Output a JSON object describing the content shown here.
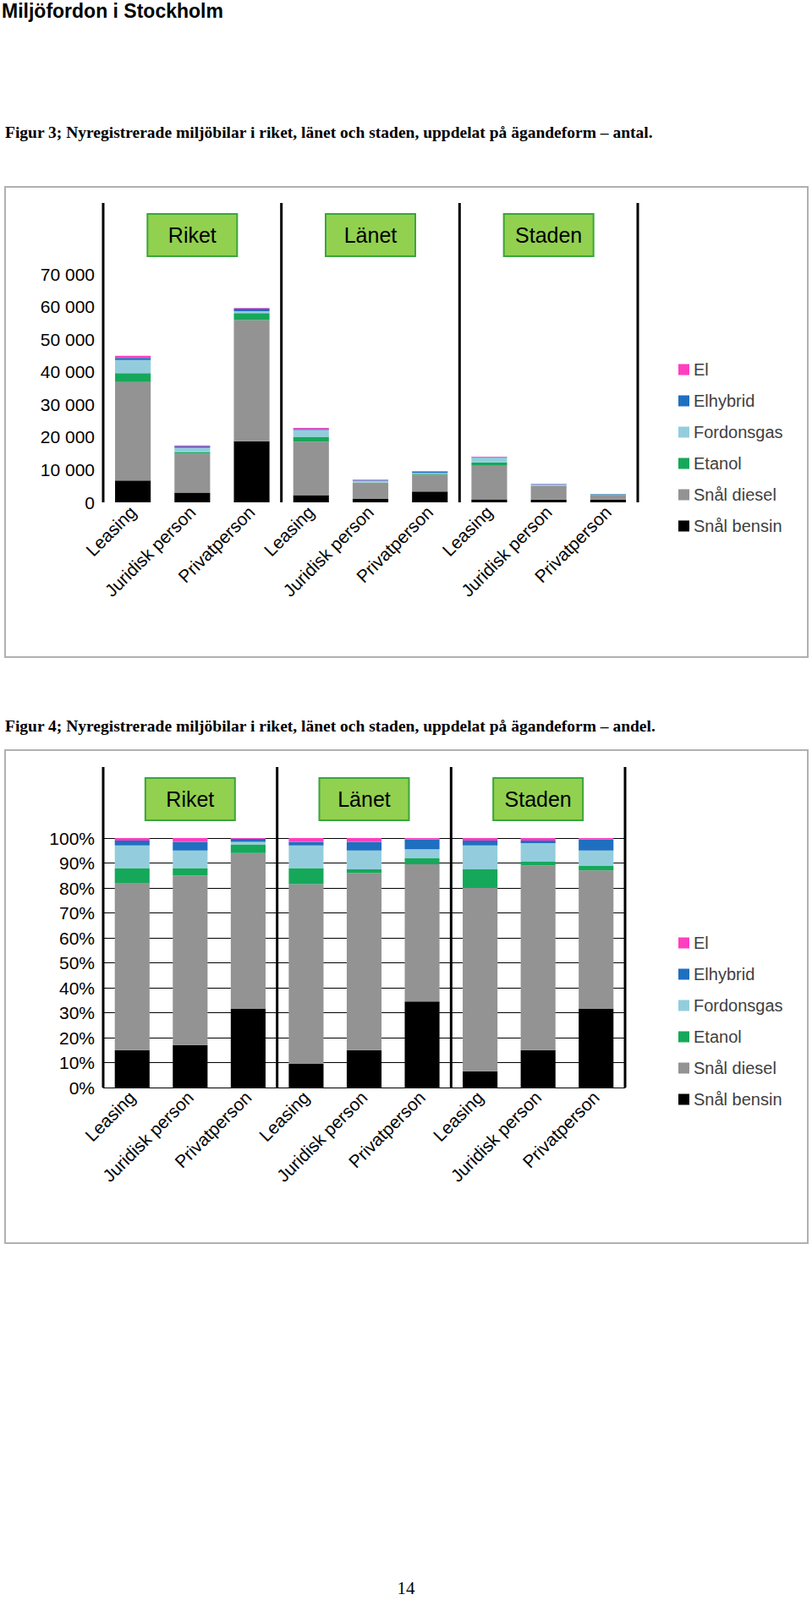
{
  "header": "Miljöfordon i Stockholm",
  "page_number": "14",
  "chart_data": [
    {
      "type": "bar",
      "title": "Figur 3; Nyregistrerade miljöbilar i riket, länet och staden, uppdelat på ägandeform – antal.",
      "groups": [
        "Riket",
        "Länet",
        "Staden"
      ],
      "categories": [
        "Leasing",
        "Juridisk person",
        "Privatperson",
        "Leasing",
        "Juridisk person",
        "Privatperson",
        "Leasing",
        "Juridisk person",
        "Privatperson"
      ],
      "series": [
        {
          "name": "Snål bensin",
          "color": "#000000",
          "values": [
            6700,
            3000,
            18700,
            2200,
            1050,
            3300,
            900,
            850,
            820
          ]
        },
        {
          "name": "Snål diesel",
          "color": "#939393",
          "values": [
            30200,
            11900,
            37200,
            16400,
            4950,
            5200,
            10300,
            4200,
            1440
          ]
        },
        {
          "name": "Etanol",
          "color": "#16a85a",
          "values": [
            2700,
            550,
            2100,
            1500,
            100,
            240,
            1050,
            90,
            50
          ]
        },
        {
          "name": "Fordonsgas",
          "color": "#93cddd",
          "values": [
            4000,
            1250,
            600,
            2050,
            530,
            330,
            1400,
            400,
            160
          ]
        },
        {
          "name": "Elhybrid",
          "color": "#1f6fc0",
          "values": [
            700,
            500,
            800,
            350,
            250,
            380,
            200,
            90,
            120
          ]
        },
        {
          "name": "El",
          "color": "#ff3fbf",
          "values": [
            600,
            250,
            150,
            300,
            100,
            50,
            150,
            60,
            15
          ]
        }
      ],
      "ylim": [
        0,
        70000
      ],
      "yticks": [
        0,
        {
          "value": 10000,
          "label": "10 000"
        },
        {
          "value": 20000,
          "label": "20 000"
        },
        {
          "value": 30000,
          "label": "30 000"
        },
        {
          "value": 40000,
          "label": "40 000"
        },
        {
          "value": 50000,
          "label": "50 000"
        },
        {
          "value": 60000,
          "label": "60 000"
        },
        {
          "value": 70000,
          "label": "70 000"
        }
      ],
      "stacked": true,
      "grid": false,
      "legend": "right"
    },
    {
      "type": "bar",
      "title": "Figur 4; Nyregistrerade miljöbilar i riket, länet och staden, uppdelat på ägandeform – andel.",
      "groups": [
        "Riket",
        "Länet",
        "Staden"
      ],
      "categories": [
        "Leasing",
        "Juridisk person",
        "Privatperson",
        "Leasing",
        "Juridisk person",
        "Privatperson",
        "Leasing",
        "Juridisk person",
        "Privatperson"
      ],
      "series": [
        {
          "name": "Snål bensin",
          "color": "#000000",
          "values": [
            15,
            17,
            31.5,
            9.5,
            15,
            34.5,
            6.5,
            15,
            31.5
          ]
        },
        {
          "name": "Snål diesel",
          "color": "#939393",
          "values": [
            67,
            68,
            62.5,
            72,
            71,
            55,
            73.5,
            74,
            55.5
          ]
        },
        {
          "name": "Etanol",
          "color": "#16a85a",
          "values": [
            6,
            3,
            3.5,
            6.5,
            1.5,
            2.5,
            7.5,
            1.5,
            2
          ]
        },
        {
          "name": "Fordonsgas",
          "color": "#93cddd",
          "values": [
            9,
            7,
            1,
            9,
            7.5,
            3.5,
            9.5,
            7.5,
            6
          ]
        },
        {
          "name": "Elhybrid",
          "color": "#1f6fc0",
          "values": [
            2,
            3.5,
            1.2,
            1.5,
            3.5,
            4,
            2,
            1,
            4.5
          ]
        },
        {
          "name": "El",
          "color": "#ff3fbf",
          "values": [
            1,
            1.5,
            0.3,
            1.5,
            1.5,
            0.5,
            1,
            1,
            0.5
          ]
        }
      ],
      "ylim": [
        0,
        100
      ],
      "yticks": [
        {
          "value": 0,
          "label": "0%"
        },
        {
          "value": 10,
          "label": "10%"
        },
        {
          "value": 20,
          "label": "20%"
        },
        {
          "value": 30,
          "label": "30%"
        },
        {
          "value": 40,
          "label": "40%"
        },
        {
          "value": 50,
          "label": "50%"
        },
        {
          "value": 60,
          "label": "60%"
        },
        {
          "value": 70,
          "label": "70%"
        },
        {
          "value": 80,
          "label": "80%"
        },
        {
          "value": 90,
          "label": "90%"
        },
        {
          "value": 100,
          "label": "100%"
        }
      ],
      "stacked": true,
      "grid": true,
      "legend": "right"
    }
  ]
}
